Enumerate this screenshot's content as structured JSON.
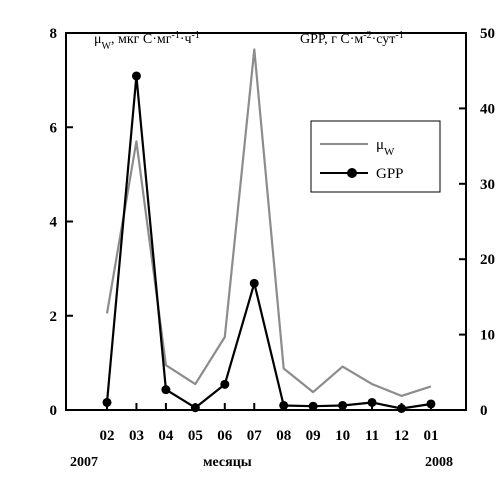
{
  "colors": {
    "mu_series": "#8c8c8c",
    "gpp_series": "#000000",
    "axis": "#000000",
    "background": "#ffffff"
  },
  "chart_data": {
    "type": "line",
    "categories": [
      "02",
      "03",
      "04",
      "05",
      "06",
      "07",
      "08",
      "09",
      "10",
      "11",
      "12",
      "01"
    ],
    "left_axis_title": {
      "parts": [
        {
          "text": "μ",
          "style": "normal"
        },
        {
          "text": "W",
          "style": "sub"
        },
        {
          "text": ", мкг С·мг",
          "style": "normal"
        },
        {
          "text": "-1",
          "style": "sup"
        },
        {
          "text": "·ч",
          "style": "normal"
        },
        {
          "text": "-1",
          "style": "sup"
        }
      ]
    },
    "right_axis_title": {
      "parts": [
        {
          "text": "GPP, г С·м",
          "style": "normal"
        },
        {
          "text": "-2",
          "style": "sup"
        },
        {
          "text": "·сут",
          "style": "normal"
        },
        {
          "text": "-1",
          "style": "sup"
        }
      ]
    },
    "xlabel": "месяцы",
    "year_start_label": "2007",
    "year_end_label": "2008",
    "y_left": {
      "min": 0,
      "max": 8,
      "ticks": [
        "0",
        "2",
        "4",
        "6",
        "8"
      ]
    },
    "y_right": {
      "min": 0,
      "max": 50,
      "ticks": [
        "0",
        "10",
        "20",
        "30",
        "40",
        "50"
      ]
    },
    "grid": false,
    "legend_position": "top-right",
    "series": [
      {
        "name": "μW",
        "legend_main": "μ",
        "legend_sub": "W",
        "axis": "left",
        "color": "#8c8c8c",
        "marker": "none",
        "values": [
          2.05,
          5.7,
          0.95,
          0.55,
          1.55,
          7.65,
          0.88,
          0.38,
          0.92,
          0.55,
          0.3,
          0.5
        ]
      },
      {
        "name": "GPP",
        "legend_main": "GPP",
        "legend_sub": "",
        "axis": "right",
        "color": "#000000",
        "marker": "circle",
        "values": [
          1.0,
          44.3,
          2.7,
          0.3,
          3.4,
          16.8,
          0.6,
          0.5,
          0.6,
          1.0,
          0.2,
          0.8
        ]
      }
    ]
  }
}
